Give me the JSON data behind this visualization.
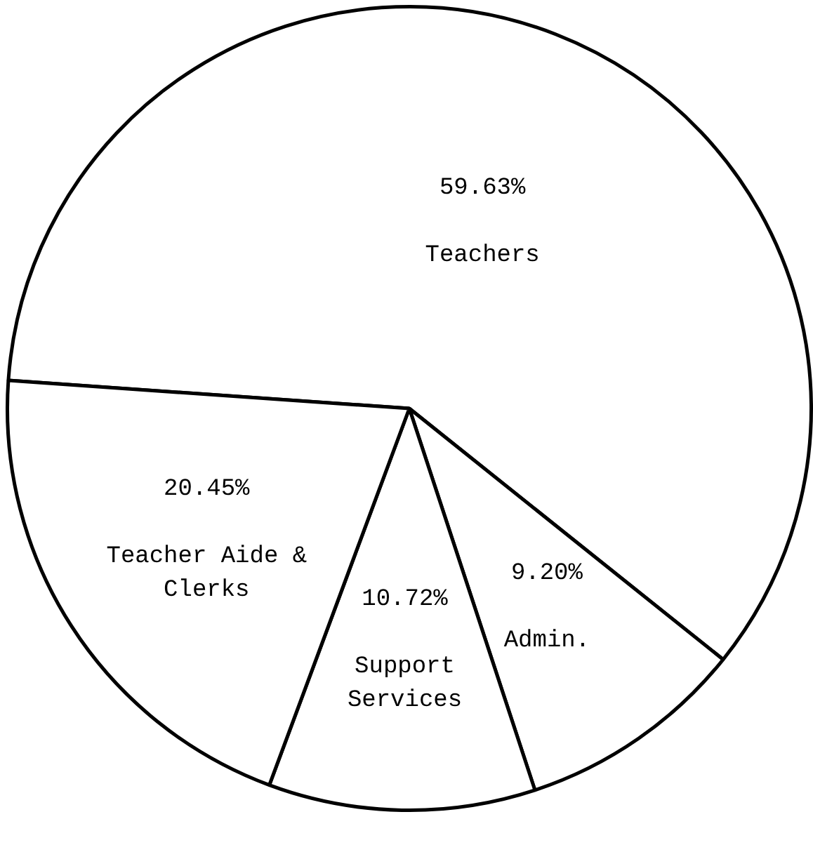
{
  "chart_data": {
    "type": "pie",
    "categories": [
      "Teachers",
      "Admin.",
      "Support Services",
      "Teacher Aide & Clerks"
    ],
    "values": [
      59.63,
      9.2,
      10.72,
      20.45
    ],
    "value_labels": [
      "59.63%",
      "9.20%",
      "10.72%",
      "20.45%"
    ],
    "colors": [
      "#ffffff",
      "#ffffff",
      "#ffffff",
      "#ffffff"
    ],
    "legend": false
  }
}
